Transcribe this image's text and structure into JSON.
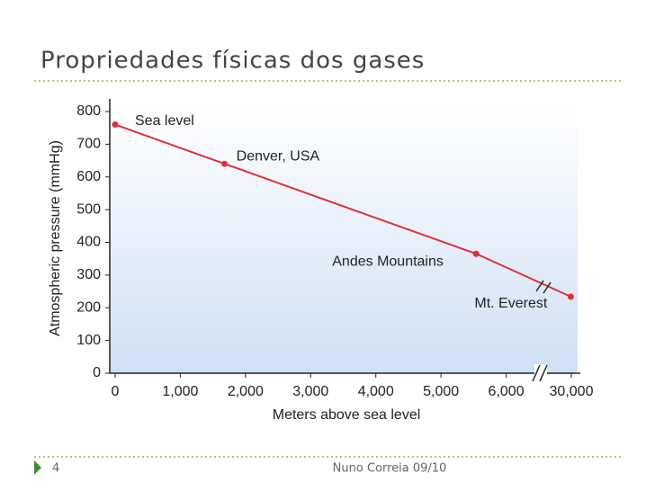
{
  "header": {
    "title": "Propriedades físicas dos gases"
  },
  "footer": {
    "page": "4",
    "author": "Nuno Correia 09/10"
  },
  "chart_data": {
    "type": "line",
    "x_label": "Meters above sea level",
    "y_label": "Atmospheric pressure (mmHg)",
    "x": [
      0,
      1680,
      5540,
      29800
    ],
    "values": [
      760,
      640,
      365,
      234
    ],
    "point_labels": [
      "Sea level",
      "Denver, USA",
      "Andes Mountains",
      "Mt. Everest"
    ],
    "color": "#e0303a",
    "xlim": [
      0,
      30000
    ],
    "xticks": [
      0,
      {
        "value": 1000,
        "label": "1,000"
      },
      {
        "value": 2000,
        "label": "2,000"
      },
      {
        "value": 3000,
        "label": "3,000"
      },
      {
        "value": 4000,
        "label": "4,000"
      },
      {
        "value": 5000,
        "label": "5,000"
      },
      {
        "value": 6000,
        "label": "6,000"
      },
      {
        "value": 30000,
        "label": "30,000"
      }
    ],
    "ylim": [
      0,
      800
    ],
    "yticks": [
      0,
      100,
      200,
      300,
      400,
      500,
      600,
      700,
      800
    ]
  }
}
